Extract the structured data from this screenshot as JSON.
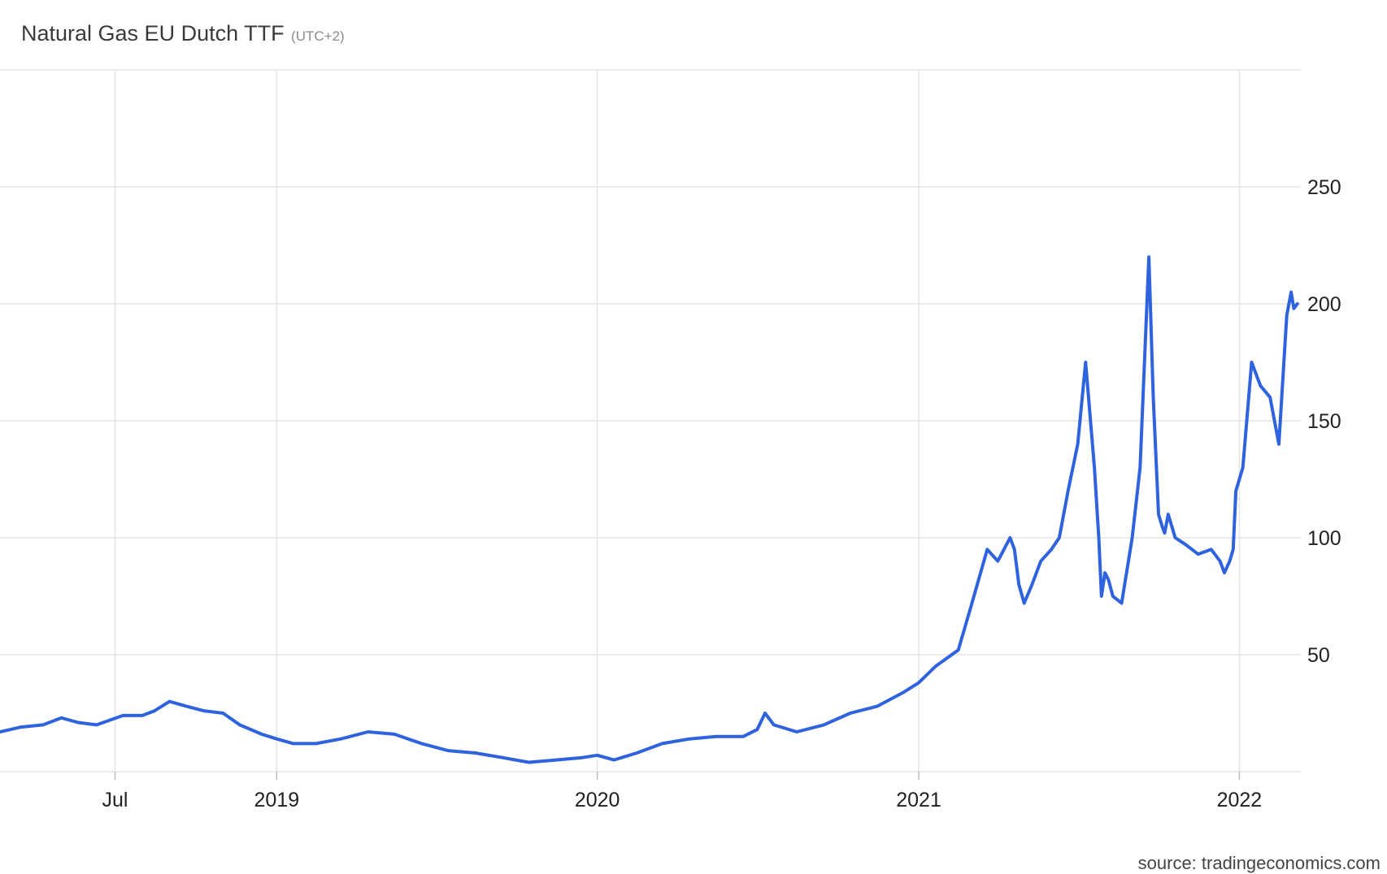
{
  "header": {
    "title": "Natural Gas EU Dutch TTF",
    "timezone": "(UTC+2)"
  },
  "footer": {
    "source": "source: tradingeconomics.com"
  },
  "colors": {
    "line": "#2f63de",
    "grid": "#e6e6e6"
  },
  "chart_data": {
    "type": "line",
    "title": "Natural Gas EU Dutch TTF",
    "xlabel": "",
    "ylabel": "",
    "ylim": [
      0,
      300
    ],
    "xlim": [
      "2018-02-20",
      "2022-03-12"
    ],
    "y_ticks": [
      50,
      100,
      150,
      200,
      250
    ],
    "x_ticks": [
      {
        "label": "Jul",
        "date": "2018-07-01"
      },
      {
        "label": "2019",
        "date": "2019-01-01"
      },
      {
        "label": "2020",
        "date": "2020-01-01"
      },
      {
        "label": "2021",
        "date": "2021-01-01"
      },
      {
        "label": "2022",
        "date": "2022-01-01"
      }
    ],
    "grid": true,
    "series": [
      {
        "x": [
          "2018-02-20",
          "2018-03-15",
          "2018-04-10",
          "2018-05-01",
          "2018-05-20",
          "2018-06-10",
          "2018-06-25",
          "2018-07-10",
          "2018-08-01",
          "2018-08-15",
          "2018-09-01",
          "2018-09-20",
          "2018-10-10",
          "2018-11-01",
          "2018-11-20",
          "2018-12-15",
          "2019-01-01",
          "2019-01-20",
          "2019-02-15",
          "2019-03-15",
          "2019-04-15",
          "2019-05-15",
          "2019-06-15",
          "2019-07-15",
          "2019-08-15",
          "2019-09-15",
          "2019-10-15",
          "2019-11-15",
          "2019-12-15",
          "2020-01-01",
          "2020-01-20",
          "2020-02-15",
          "2020-03-15",
          "2020-04-15",
          "2020-05-15",
          "2020-06-15",
          "2020-07-01",
          "2020-07-10",
          "2020-07-20",
          "2020-08-15",
          "2020-09-15",
          "2020-10-15",
          "2020-11-15",
          "2020-12-15",
          "2021-01-01",
          "2021-01-20",
          "2021-02-15",
          "2021-03-01",
          "2021-03-20",
          "2021-04-01",
          "2021-04-15",
          "2021-04-20",
          "2021-04-25",
          "2021-05-01",
          "2021-05-10",
          "2021-05-20",
          "2021-06-01",
          "2021-06-10",
          "2021-06-20",
          "2021-07-01",
          "2021-07-10",
          "2021-07-20",
          "2021-07-25",
          "2021-07-28",
          "2021-08-01",
          "2021-08-05",
          "2021-08-10",
          "2021-08-20",
          "2021-09-01",
          "2021-09-10",
          "2021-09-20",
          "2021-09-25",
          "2021-10-01",
          "2021-10-05",
          "2021-10-08",
          "2021-10-12",
          "2021-10-20",
          "2021-11-01",
          "2021-11-15",
          "2021-11-30",
          "2021-12-10",
          "2021-12-15",
          "2021-12-21",
          "2021-12-25",
          "2021-12-28",
          "2022-01-05",
          "2022-01-15",
          "2022-01-25",
          "2022-02-05",
          "2022-02-15",
          "2022-02-24",
          "2022-03-01",
          "2022-03-04",
          "2022-03-08"
        ],
        "y": [
          17,
          19,
          20,
          23,
          21,
          20,
          22,
          24,
          24,
          26,
          30,
          28,
          26,
          25,
          20,
          16,
          14,
          12,
          12,
          14,
          17,
          16,
          12,
          9,
          8,
          6,
          4,
          5,
          6,
          7,
          5,
          8,
          12,
          14,
          15,
          15,
          18,
          25,
          20,
          17,
          20,
          25,
          28,
          34,
          38,
          45,
          52,
          70,
          95,
          90,
          100,
          95,
          80,
          72,
          80,
          90,
          95,
          100,
          120,
          140,
          175,
          130,
          100,
          75,
          85,
          82,
          75,
          72,
          100,
          130,
          220,
          160,
          110,
          105,
          102,
          110,
          100,
          97,
          93,
          95,
          90,
          85,
          90,
          95,
          120,
          130,
          175,
          165,
          160,
          140,
          195,
          205,
          198,
          200
        ]
      }
    ]
  }
}
